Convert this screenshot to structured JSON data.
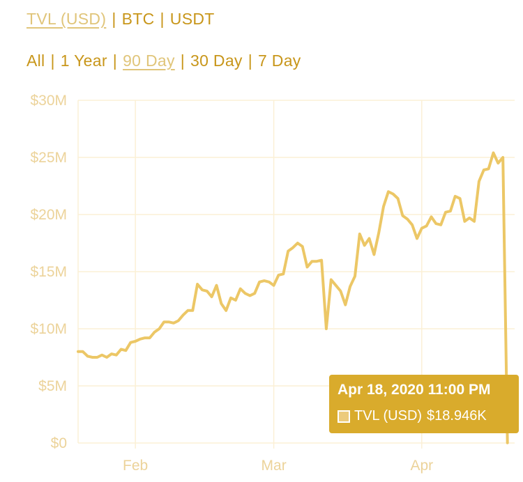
{
  "currency_toggle": {
    "options": [
      "TVL (USD)",
      "BTC",
      "USDT"
    ],
    "active": "TVL (USD)",
    "separator": "|"
  },
  "range_toggle": {
    "options": [
      "All",
      "1 Year",
      "90 Day",
      "30 Day",
      "7 Day"
    ],
    "active": "90 Day",
    "separator": "|"
  },
  "colors": {
    "line": "#ecc766",
    "grid": "#fbf0d6",
    "tick_label": "#ecd39a",
    "tooltip_bg": "#d9ab2c",
    "toggle_text": "#c8961a"
  },
  "tooltip": {
    "title": "Apr 18, 2020 11:00 PM",
    "label": "TVL (USD)",
    "value": "$18.946K"
  },
  "chart_data": {
    "type": "line",
    "title": "",
    "xlabel": "",
    "ylabel": "",
    "ylim": [
      0,
      30
    ],
    "y_unit": "$M",
    "y_ticks": [
      0,
      5,
      10,
      15,
      20,
      25,
      30
    ],
    "y_tick_labels": [
      "$0",
      "$5M",
      "$10M",
      "$15M",
      "$20M",
      "$25M",
      "$30M"
    ],
    "x_range": [
      "2020-01-20",
      "2020-04-19"
    ],
    "x_ticks": [
      {
        "date": "2020-02-01",
        "label": "Feb"
      },
      {
        "date": "2020-03-01",
        "label": "Mar"
      },
      {
        "date": "2020-04-01",
        "label": "Apr"
      }
    ],
    "grid": true,
    "legend": "none",
    "series": [
      {
        "name": "TVL (USD)",
        "points": [
          [
            "2020-01-20",
            8.0
          ],
          [
            "2020-01-21",
            8.0
          ],
          [
            "2020-01-22",
            7.6
          ],
          [
            "2020-01-23",
            7.5
          ],
          [
            "2020-01-24",
            7.5
          ],
          [
            "2020-01-25",
            7.7
          ],
          [
            "2020-01-26",
            7.5
          ],
          [
            "2020-01-27",
            7.8
          ],
          [
            "2020-01-28",
            7.7
          ],
          [
            "2020-01-29",
            8.2
          ],
          [
            "2020-01-30",
            8.1
          ],
          [
            "2020-01-31",
            8.8
          ],
          [
            "2020-02-01",
            8.9
          ],
          [
            "2020-02-02",
            9.1
          ],
          [
            "2020-02-03",
            9.2
          ],
          [
            "2020-02-04",
            9.2
          ],
          [
            "2020-02-05",
            9.7
          ],
          [
            "2020-02-06",
            10.0
          ],
          [
            "2020-02-07",
            10.6
          ],
          [
            "2020-02-08",
            10.6
          ],
          [
            "2020-02-09",
            10.5
          ],
          [
            "2020-02-10",
            10.7
          ],
          [
            "2020-02-11",
            11.2
          ],
          [
            "2020-02-12",
            11.6
          ],
          [
            "2020-02-13",
            11.6
          ],
          [
            "2020-02-14",
            13.9
          ],
          [
            "2020-02-15",
            13.4
          ],
          [
            "2020-02-16",
            13.3
          ],
          [
            "2020-02-17",
            12.8
          ],
          [
            "2020-02-18",
            13.8
          ],
          [
            "2020-02-19",
            12.2
          ],
          [
            "2020-02-20",
            11.6
          ],
          [
            "2020-02-21",
            12.7
          ],
          [
            "2020-02-22",
            12.5
          ],
          [
            "2020-02-23",
            13.5
          ],
          [
            "2020-02-24",
            13.1
          ],
          [
            "2020-02-25",
            12.9
          ],
          [
            "2020-02-26",
            13.1
          ],
          [
            "2020-02-27",
            14.1
          ],
          [
            "2020-02-28",
            14.2
          ],
          [
            "2020-02-29",
            14.1
          ],
          [
            "2020-03-01",
            13.8
          ],
          [
            "2020-03-02",
            14.7
          ],
          [
            "2020-03-03",
            14.8
          ],
          [
            "2020-03-04",
            16.8
          ],
          [
            "2020-03-05",
            17.1
          ],
          [
            "2020-03-06",
            17.5
          ],
          [
            "2020-03-07",
            17.2
          ],
          [
            "2020-03-08",
            15.4
          ],
          [
            "2020-03-09",
            15.9
          ],
          [
            "2020-03-10",
            15.9
          ],
          [
            "2020-03-11",
            16.0
          ],
          [
            "2020-03-12",
            10.0
          ],
          [
            "2020-03-13",
            14.3
          ],
          [
            "2020-03-14",
            13.8
          ],
          [
            "2020-03-15",
            13.3
          ],
          [
            "2020-03-16",
            12.1
          ],
          [
            "2020-03-17",
            13.7
          ],
          [
            "2020-03-18",
            14.6
          ],
          [
            "2020-03-19",
            18.3
          ],
          [
            "2020-03-20",
            17.3
          ],
          [
            "2020-03-21",
            17.9
          ],
          [
            "2020-03-22",
            16.5
          ],
          [
            "2020-03-23",
            18.4
          ],
          [
            "2020-03-24",
            20.7
          ],
          [
            "2020-03-25",
            22.0
          ],
          [
            "2020-03-26",
            21.8
          ],
          [
            "2020-03-27",
            21.4
          ],
          [
            "2020-03-28",
            19.9
          ],
          [
            "2020-03-29",
            19.6
          ],
          [
            "2020-03-30",
            19.1
          ],
          [
            "2020-03-31",
            17.9
          ],
          [
            "2020-04-01",
            18.8
          ],
          [
            "2020-04-02",
            19.0
          ],
          [
            "2020-04-03",
            19.8
          ],
          [
            "2020-04-04",
            19.2
          ],
          [
            "2020-04-05",
            19.1
          ],
          [
            "2020-04-06",
            20.2
          ],
          [
            "2020-04-07",
            20.3
          ],
          [
            "2020-04-08",
            21.6
          ],
          [
            "2020-04-09",
            21.4
          ],
          [
            "2020-04-10",
            19.4
          ],
          [
            "2020-04-11",
            19.7
          ],
          [
            "2020-04-12",
            19.4
          ],
          [
            "2020-04-13",
            22.9
          ],
          [
            "2020-04-14",
            23.9
          ],
          [
            "2020-04-15",
            24.0
          ],
          [
            "2020-04-16",
            25.4
          ],
          [
            "2020-04-17",
            24.5
          ],
          [
            "2020-04-18",
            25.0
          ],
          [
            "2020-04-18T23:00",
            0.018946
          ]
        ]
      }
    ]
  }
}
